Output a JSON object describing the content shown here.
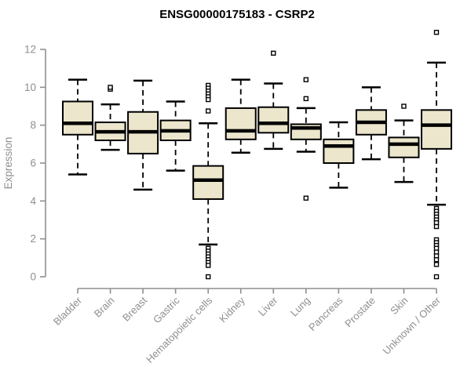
{
  "chart_data": {
    "type": "boxplot",
    "title": "ENSG00000175183 - CSRP2",
    "xlabel": "",
    "ylabel": "Expression",
    "ylim": [
      0,
      13
    ],
    "yticks": [
      0,
      2,
      4,
      6,
      8,
      10,
      12
    ],
    "grid": false,
    "legend": "none",
    "categories": [
      "Bladder",
      "Brain",
      "Breast",
      "Gastric",
      "Hematopoietic cells",
      "Kidney",
      "Liver",
      "Lung",
      "Pancreas",
      "Prostate",
      "Skin",
      "Unknown / Other"
    ],
    "series": [
      {
        "category": "Bladder",
        "low": 5.4,
        "q1": 7.5,
        "median": 8.1,
        "q3": 9.25,
        "high": 10.4,
        "outliers": []
      },
      {
        "category": "Brain",
        "low": 6.7,
        "q1": 7.2,
        "median": 7.65,
        "q3": 8.15,
        "high": 9.1,
        "outliers": [
          9.9,
          10.0
        ]
      },
      {
        "category": "Breast",
        "low": 4.6,
        "q1": 6.5,
        "median": 7.65,
        "q3": 8.7,
        "high": 10.35,
        "outliers": []
      },
      {
        "category": "Gastric",
        "low": 5.6,
        "q1": 7.2,
        "median": 7.7,
        "q3": 8.25,
        "high": 9.25,
        "outliers": []
      },
      {
        "category": "Hematopoietic cells",
        "low": 1.7,
        "q1": 4.1,
        "median": 5.1,
        "q3": 5.85,
        "high": 8.1,
        "outliers": [
          10.1,
          9.95,
          9.8,
          9.65,
          9.5,
          9.35,
          8.75,
          1.5,
          1.35,
          1.2,
          1.05,
          0.9,
          0.75,
          0.6,
          0.0
        ]
      },
      {
        "category": "Kidney",
        "low": 6.55,
        "q1": 7.25,
        "median": 7.7,
        "q3": 8.9,
        "high": 10.4,
        "outliers": []
      },
      {
        "category": "Liver",
        "low": 6.75,
        "q1": 7.6,
        "median": 8.1,
        "q3": 8.95,
        "high": 10.2,
        "outliers": [
          11.8
        ]
      },
      {
        "category": "Lung",
        "low": 6.6,
        "q1": 7.25,
        "median": 7.85,
        "q3": 8.05,
        "high": 8.9,
        "outliers": [
          10.4,
          9.4,
          4.15
        ]
      },
      {
        "category": "Pancreas",
        "low": 4.7,
        "q1": 6.0,
        "median": 6.9,
        "q3": 7.25,
        "high": 8.15,
        "outliers": []
      },
      {
        "category": "Prostate",
        "low": 6.2,
        "q1": 7.5,
        "median": 8.15,
        "q3": 8.8,
        "high": 10.0,
        "outliers": []
      },
      {
        "category": "Skin",
        "low": 5.0,
        "q1": 6.3,
        "median": 7.0,
        "q3": 7.35,
        "high": 8.25,
        "outliers": [
          9.0
        ]
      },
      {
        "category": "Unknown / Other",
        "low": 3.8,
        "q1": 6.75,
        "median": 8.0,
        "q3": 8.8,
        "high": 11.3,
        "outliers": [
          12.9,
          3.6,
          3.45,
          3.3,
          3.15,
          3.0,
          2.85,
          2.65,
          1.95,
          1.8,
          1.65,
          1.5,
          1.3,
          1.1,
          0.9,
          0.65,
          0.0
        ]
      }
    ]
  },
  "style": {
    "background": "#ffffff",
    "axis_color": "#8f8f8f",
    "title_color": "#000000",
    "box_fill": "#ebe6cc",
    "box_stroke": "#000000",
    "median_color": "#000000",
    "whisker_color": "#000000",
    "outlier_fill": "#ffffff",
    "outlier_stroke": "#000000"
  }
}
